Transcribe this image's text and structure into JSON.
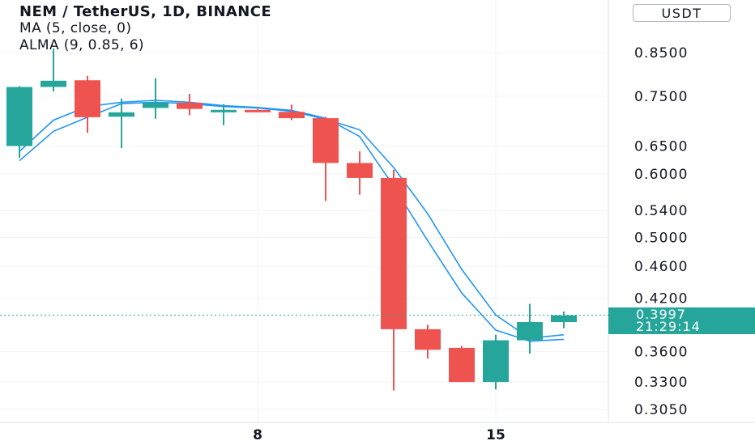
{
  "legend": {
    "title": "NEM / TetherUS, 1D, BINANCE",
    "ma": "MA (5, close, 0)",
    "alma": "ALMA (9, 0.85, 6)"
  },
  "currency_button": "USDT",
  "last_price": {
    "price": "0.3997",
    "countdown": "21:29:14"
  },
  "colors": {
    "up": "#26a69a",
    "down": "#ef5350",
    "ma_line": "#2196f3",
    "grid": "#f0f3fa",
    "price_line": "#26a69a"
  },
  "chart_data": {
    "type": "candlestick",
    "title": "NEM / TetherUS, 1D, BINANCE",
    "y_scale": "log",
    "ylim": [
      0.29,
      0.98
    ],
    "y_ticks": [
      0.305,
      0.33,
      0.36,
      0.42,
      0.46,
      0.5,
      0.54,
      0.6,
      0.65,
      0.75,
      0.85
    ],
    "y_tick_labels": [
      "0.3050",
      "0.3300",
      "0.3600",
      "0.4200",
      "0.4600",
      "0.5000",
      "0.5400",
      "0.6000",
      "0.6500",
      "0.7500",
      "0.8500"
    ],
    "x_tick_labels": [
      {
        "day": 8,
        "label": "8"
      },
      {
        "day": 15,
        "label": "15"
      }
    ],
    "grid": true,
    "candles": [
      {
        "day": 1,
        "open": 0.65,
        "high": 0.772,
        "low": 0.628,
        "close": 0.77
      },
      {
        "day": 2,
        "open": 0.77,
        "high": 0.86,
        "low": 0.76,
        "close": 0.784
      },
      {
        "day": 3,
        "open": 0.785,
        "high": 0.795,
        "low": 0.675,
        "close": 0.706
      },
      {
        "day": 4,
        "open": 0.707,
        "high": 0.745,
        "low": 0.646,
        "close": 0.716
      },
      {
        "day": 5,
        "open": 0.725,
        "high": 0.79,
        "low": 0.703,
        "close": 0.736
      },
      {
        "day": 6,
        "open": 0.736,
        "high": 0.755,
        "low": 0.71,
        "close": 0.723
      },
      {
        "day": 7,
        "open": 0.721,
        "high": 0.733,
        "low": 0.69,
        "close": 0.721
      },
      {
        "day": 8,
        "open": 0.721,
        "high": 0.723,
        "low": 0.716,
        "close": 0.717
      },
      {
        "day": 9,
        "open": 0.717,
        "high": 0.732,
        "low": 0.7,
        "close": 0.704
      },
      {
        "day": 10,
        "open": 0.704,
        "high": 0.707,
        "low": 0.555,
        "close": 0.619
      },
      {
        "day": 11,
        "open": 0.619,
        "high": 0.64,
        "low": 0.565,
        "close": 0.593
      },
      {
        "day": 12,
        "open": 0.593,
        "high": 0.607,
        "low": 0.322,
        "close": 0.384
      },
      {
        "day": 13,
        "open": 0.384,
        "high": 0.389,
        "low": 0.353,
        "close": 0.362
      },
      {
        "day": 14,
        "open": 0.364,
        "high": 0.366,
        "low": 0.33,
        "close": 0.33
      },
      {
        "day": 15,
        "open": 0.33,
        "high": 0.378,
        "low": 0.323,
        "close": 0.372
      },
      {
        "day": 16,
        "open": 0.372,
        "high": 0.413,
        "low": 0.358,
        "close": 0.392
      },
      {
        "day": 17,
        "open": 0.392,
        "high": 0.404,
        "low": 0.385,
        "close": 0.3997
      }
    ],
    "series": [
      {
        "name": "MA (5, close, 0)",
        "x": [
          1,
          2,
          3,
          4,
          5,
          6,
          7,
          8,
          9,
          10,
          11,
          12,
          13,
          14,
          15,
          16,
          17
        ],
        "values": [
          0.623,
          0.678,
          0.706,
          0.734,
          0.737,
          0.734,
          0.728,
          0.725,
          0.718,
          0.702,
          0.681,
          0.611,
          0.535,
          0.456,
          0.4,
          0.374,
          0.378
        ]
      },
      {
        "name": "ALMA (9, 0.85, 6)",
        "x": [
          1,
          2,
          3,
          4,
          5,
          6,
          7,
          8,
          9,
          10,
          11,
          12,
          13,
          14,
          15,
          16,
          17
        ],
        "values": [
          0.64,
          0.7,
          0.728,
          0.737,
          0.741,
          0.737,
          0.73,
          0.726,
          0.72,
          0.704,
          0.668,
          0.579,
          0.495,
          0.426,
          0.383,
          0.371,
          0.373
        ]
      }
    ],
    "last_price": 0.3997
  }
}
